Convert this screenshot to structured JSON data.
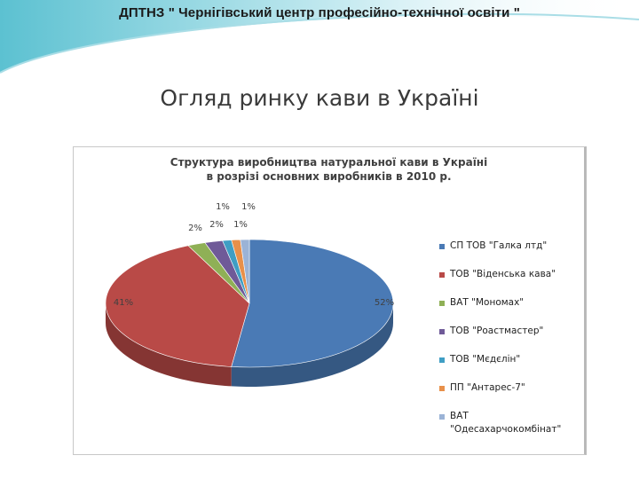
{
  "header": {
    "text": "ДПТНЗ \" Чернігівський центр професійно-технічної освіти \""
  },
  "slide": {
    "title": "Огляд ринку кави в Україні"
  },
  "chart_data": {
    "type": "pie",
    "title_lines": [
      "Структура виробництва натуральної кави в Україні",
      "в розрізі основних виробників в 2010 р."
    ],
    "categories": [
      "СП ТОВ \"Галка лтд\"",
      "ТОВ \"Віденська кава\"",
      "ВАТ \"Мономах\"",
      "ТОВ \"Роастмастер\"",
      "ТОВ \"Мєдєлін\"",
      "ПП \"Антарес-7\"",
      "ВАТ \"Одесахарчокомбінат\""
    ],
    "values": [
      52,
      41,
      2,
      2,
      1,
      1,
      1
    ],
    "data_labels": [
      "52%",
      "41%",
      "2%",
      "2%",
      "1%",
      "1%",
      "1%"
    ],
    "colors": [
      "#4a7ab5",
      "#b94a47",
      "#8fb056",
      "#6f5a98",
      "#3f9ec4",
      "#e8904a",
      "#9bb3d6"
    ],
    "legend_position": "right",
    "style": "3d"
  }
}
